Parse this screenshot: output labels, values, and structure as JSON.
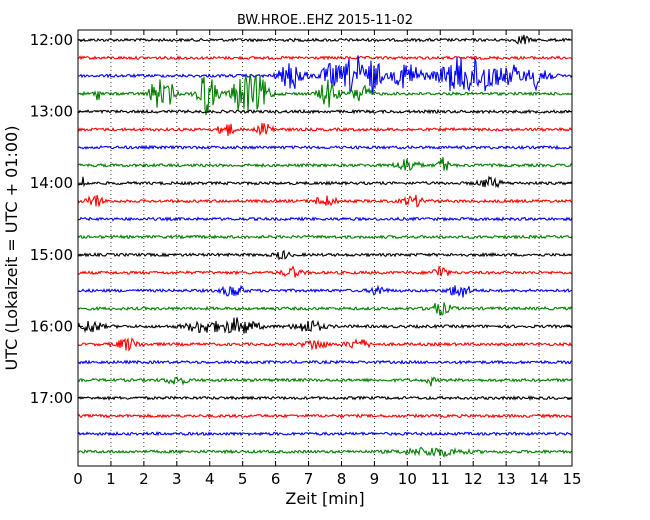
{
  "chart_data": {
    "type": "line",
    "title": "BW.HROE..EHZ 2015-11-02",
    "xlabel": "Zeit  [min]",
    "ylabel": "UTC (Lokalzeit = UTC + 01:00)",
    "xlim": [
      0,
      15
    ],
    "x_ticks": [
      "0",
      "1",
      "2",
      "3",
      "4",
      "5",
      "6",
      "7",
      "8",
      "9",
      "10",
      "11",
      "12",
      "13",
      "14",
      "15"
    ],
    "y_ticks": [
      "12:00",
      "13:00",
      "14:00",
      "15:00",
      "16:00",
      "17:00"
    ],
    "grid": "vertical dotted",
    "colors": [
      "#000000",
      "#ff0000",
      "#0000ff",
      "#008000"
    ],
    "series": [
      {
        "start": "12:00",
        "color": "#000000",
        "bursts": [
          [
            13.5,
            0.15,
            6
          ]
        ]
      },
      {
        "start": "12:15",
        "color": "#ff0000",
        "bursts": []
      },
      {
        "start": "12:30",
        "color": "#0000ff",
        "bursts": [
          [
            6.5,
            0.35,
            14
          ],
          [
            7.7,
            0.3,
            12
          ],
          [
            8.4,
            0.3,
            22
          ],
          [
            9.0,
            0.2,
            18
          ],
          [
            10.0,
            0.4,
            14
          ],
          [
            11.6,
            0.6,
            18
          ],
          [
            12.4,
            0.4,
            14
          ],
          [
            13.2,
            0.3,
            10
          ],
          [
            14.0,
            0.3,
            14
          ]
        ]
      },
      {
        "start": "12:45",
        "color": "#008000",
        "bursts": [
          [
            2.4,
            0.2,
            16
          ],
          [
            2.8,
            0.15,
            10
          ],
          [
            3.8,
            0.2,
            14
          ],
          [
            4.0,
            0.25,
            12
          ],
          [
            5.0,
            0.3,
            20
          ],
          [
            5.5,
            0.3,
            16
          ],
          [
            7.6,
            0.25,
            14
          ],
          [
            8.6,
            0.25,
            10
          ],
          [
            0.6,
            0.1,
            6
          ]
        ]
      },
      {
        "start": "13:00",
        "color": "#000000",
        "bursts": []
      },
      {
        "start": "13:15",
        "color": "#ff0000",
        "bursts": [
          [
            4.5,
            0.2,
            8
          ],
          [
            5.7,
            0.2,
            8
          ]
        ]
      },
      {
        "start": "13:30",
        "color": "#0000ff",
        "bursts": []
      },
      {
        "start": "13:45",
        "color": "#008000",
        "bursts": [
          [
            10.0,
            0.3,
            7
          ],
          [
            11.1,
            0.15,
            8
          ]
        ]
      },
      {
        "start": "14:00",
        "color": "#000000",
        "bursts": [
          [
            0.15,
            0.1,
            6
          ],
          [
            12.5,
            0.3,
            5
          ]
        ]
      },
      {
        "start": "14:15",
        "color": "#ff0000",
        "bursts": [
          [
            0.5,
            0.2,
            7
          ],
          [
            7.5,
            0.3,
            5
          ],
          [
            10.2,
            0.3,
            5
          ]
        ]
      },
      {
        "start": "14:30",
        "color": "#0000ff",
        "bursts": []
      },
      {
        "start": "14:45",
        "color": "#008000",
        "bursts": []
      },
      {
        "start": "15:00",
        "color": "#000000",
        "bursts": [
          [
            6.2,
            0.2,
            4
          ]
        ]
      },
      {
        "start": "15:15",
        "color": "#ff0000",
        "bursts": [
          [
            6.5,
            0.25,
            5
          ],
          [
            11.0,
            0.2,
            7
          ]
        ]
      },
      {
        "start": "15:30",
        "color": "#0000ff",
        "bursts": [
          [
            4.7,
            0.3,
            6
          ],
          [
            9.1,
            0.2,
            5
          ],
          [
            11.6,
            0.3,
            7
          ]
        ]
      },
      {
        "start": "15:45",
        "color": "#008000",
        "bursts": [
          [
            11.0,
            0.3,
            6
          ]
        ]
      },
      {
        "start": "16:00",
        "color": "#000000",
        "bursts": [
          [
            0.4,
            0.3,
            6
          ],
          [
            3.8,
            0.5,
            6
          ],
          [
            4.9,
            0.5,
            8
          ],
          [
            7.0,
            0.4,
            6
          ]
        ]
      },
      {
        "start": "16:15",
        "color": "#ff0000",
        "bursts": [
          [
            1.5,
            0.3,
            6
          ],
          [
            7.2,
            0.3,
            5
          ],
          [
            8.5,
            0.3,
            5
          ]
        ]
      },
      {
        "start": "16:30",
        "color": "#0000ff",
        "bursts": []
      },
      {
        "start": "16:45",
        "color": "#008000",
        "bursts": [
          [
            3.0,
            0.3,
            4
          ],
          [
            10.7,
            0.1,
            5
          ]
        ]
      },
      {
        "start": "17:00",
        "color": "#000000",
        "bursts": []
      },
      {
        "start": "17:15",
        "color": "#ff0000",
        "bursts": []
      },
      {
        "start": "17:30",
        "color": "#0000ff",
        "bursts": []
      },
      {
        "start": "17:45",
        "color": "#008000",
        "bursts": [
          [
            10.8,
            0.8,
            4
          ]
        ]
      }
    ]
  }
}
